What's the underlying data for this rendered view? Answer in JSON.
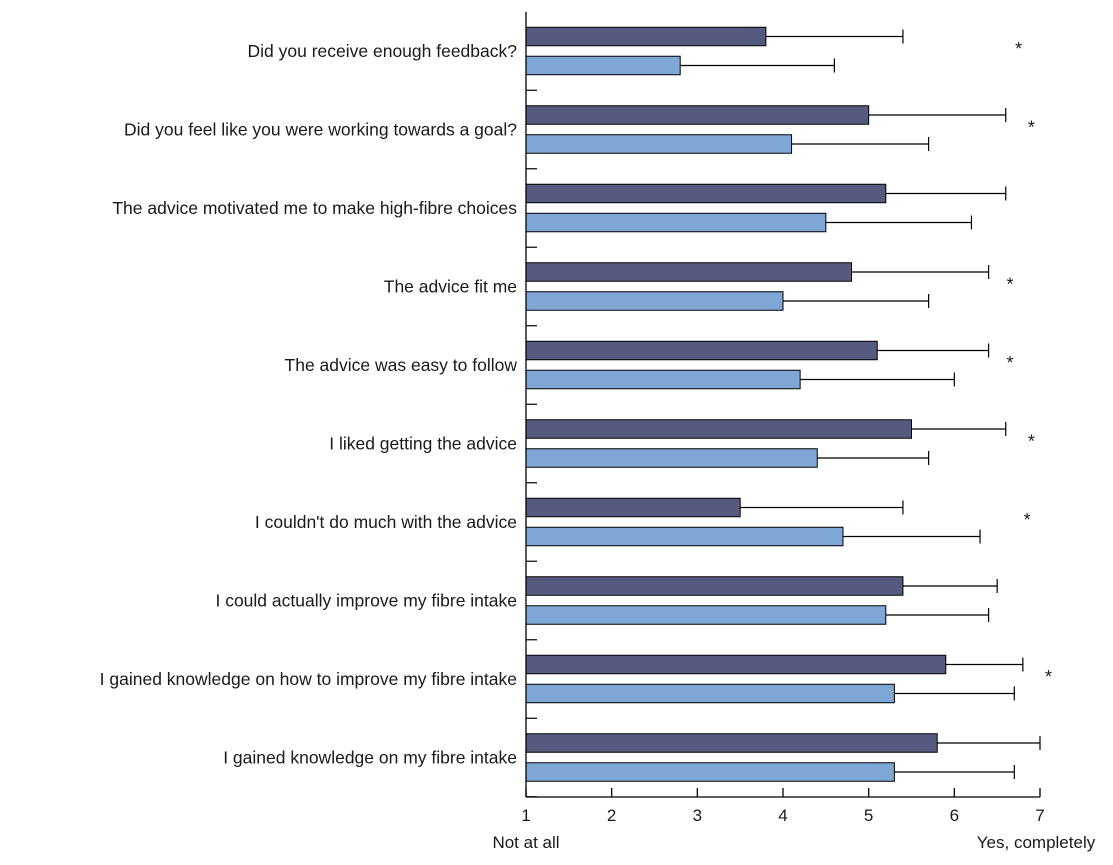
{
  "chart_data": {
    "type": "bar",
    "orientation": "horizontal",
    "title": "",
    "xlabel": "",
    "ylabel": "",
    "xlim": [
      1,
      7
    ],
    "x_ticks": [
      1,
      2,
      3,
      4,
      5,
      6,
      7
    ],
    "x_anchor_labels": {
      "low": "Not at all",
      "high": "Yes, completely"
    },
    "grid": false,
    "legend": "none",
    "colors": {
      "series1": "#575a7f",
      "series2": "#7fa7d6",
      "axis": "#000000"
    },
    "categories": [
      "Did you receive enough feedback?",
      "Did you feel like you were working towards a goal?",
      "The advice motivated me to make high-fibre choices",
      "The advice fit me",
      "The advice was easy to follow",
      "I liked getting the advice",
      "I couldn't do much with the advice",
      "I could actually improve my fibre intake",
      "I gained knowledge on how to improve my fibre intake",
      "I gained knowledge on my fibre intake"
    ],
    "series": [
      {
        "values": [
          3.8,
          5.0,
          5.2,
          4.8,
          5.1,
          5.5,
          3.5,
          5.4,
          5.9,
          5.8
        ],
        "error_upper": [
          5.4,
          6.6,
          6.6,
          6.4,
          6.4,
          6.6,
          5.4,
          6.5,
          6.8,
          7.0
        ]
      },
      {
        "values": [
          2.8,
          4.1,
          4.5,
          4.0,
          4.2,
          4.4,
          4.7,
          5.2,
          5.3,
          5.3
        ],
        "error_upper": [
          4.6,
          5.7,
          6.2,
          5.7,
          6.0,
          5.7,
          6.3,
          6.4,
          6.7,
          6.7
        ]
      }
    ],
    "significance": [
      {
        "category_index": 0,
        "x": 6.75,
        "label": "*"
      },
      {
        "category_index": 1,
        "x": 6.9,
        "label": "*"
      },
      {
        "category_index": 3,
        "x": 6.65,
        "label": "*"
      },
      {
        "category_index": 4,
        "x": 6.65,
        "label": "*"
      },
      {
        "category_index": 5,
        "x": 6.9,
        "label": "*"
      },
      {
        "category_index": 6,
        "x": 6.85,
        "label": "*"
      },
      {
        "category_index": 8,
        "x": 7.1,
        "label": "*"
      }
    ]
  }
}
